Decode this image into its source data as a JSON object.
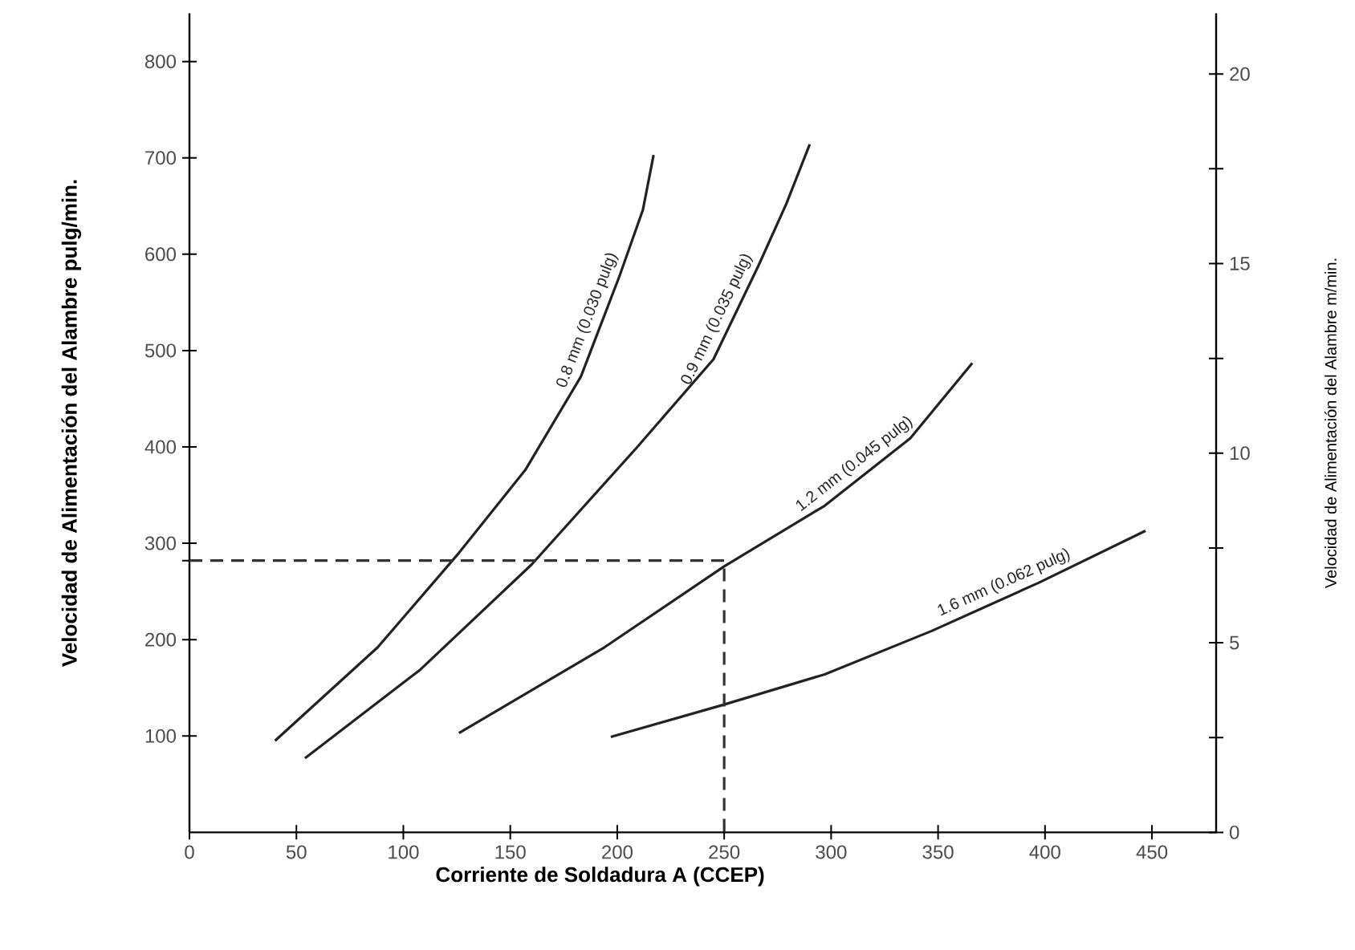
{
  "chart_data": {
    "type": "line",
    "xlabel": "Corriente de Soldadura A (CCEP)",
    "ylabel": "Velocidad de Alimentación del Alambre pulg/min.",
    "y2label": "Velocidad de Alimentación del Alambre m/min.",
    "xlim": [
      0,
      480
    ],
    "ylim": [
      0,
      850
    ],
    "y2lim": [
      0,
      21.6
    ],
    "xticks": [
      0,
      50,
      100,
      150,
      200,
      250,
      300,
      350,
      400,
      450
    ],
    "yticks": [
      100,
      200,
      {
        "value": 282,
        "label": null
      },
      300,
      400,
      500,
      600,
      700,
      800
    ],
    "y2ticks": [
      0,
      {
        "value": 2.5,
        "label": null
      },
      5,
      {
        "value": 7.5,
        "label": null
      },
      10,
      {
        "value": 12.5,
        "label": null
      },
      15,
      {
        "value": 17.5,
        "label": null
      },
      20
    ],
    "series": [
      {
        "name": "0.8 mm (0.030 pulg)",
        "color": "#222222",
        "line_style": "solid",
        "x": [
          40,
          88,
          126,
          157,
          183,
          201,
          212,
          217
        ],
        "values": [
          95,
          192,
          290,
          376,
          473,
          577,
          646,
          703
        ]
      },
      {
        "name": "0.9 mm (0.035 pulg)",
        "color": "#222222",
        "line_style": "solid",
        "x": [
          54,
          108,
          160,
          209,
          245,
          266,
          279,
          290
        ],
        "values": [
          77,
          169,
          278,
          399,
          491,
          588,
          652,
          714
        ]
      },
      {
        "name": "1.2 mm (0.045 pulg)",
        "color": "#222222",
        "line_style": "solid",
        "x": [
          126,
          194,
          250,
          297,
          337,
          366
        ],
        "values": [
          103,
          192,
          276,
          339,
          409,
          487
        ]
      },
      {
        "name": "1.6 mm (0.062 pulg)",
        "color": "#222222",
        "line_style": "solid",
        "x": [
          197,
          249,
          297,
          347,
          397,
          447
        ],
        "values": [
          99,
          132,
          164,
          209,
          259,
          313
        ]
      },
      {
        "color": "#333333",
        "line_style": "dashed",
        "x": [
          0,
          250,
          250
        ],
        "values": [
          282,
          282,
          0
        ]
      }
    ]
  }
}
